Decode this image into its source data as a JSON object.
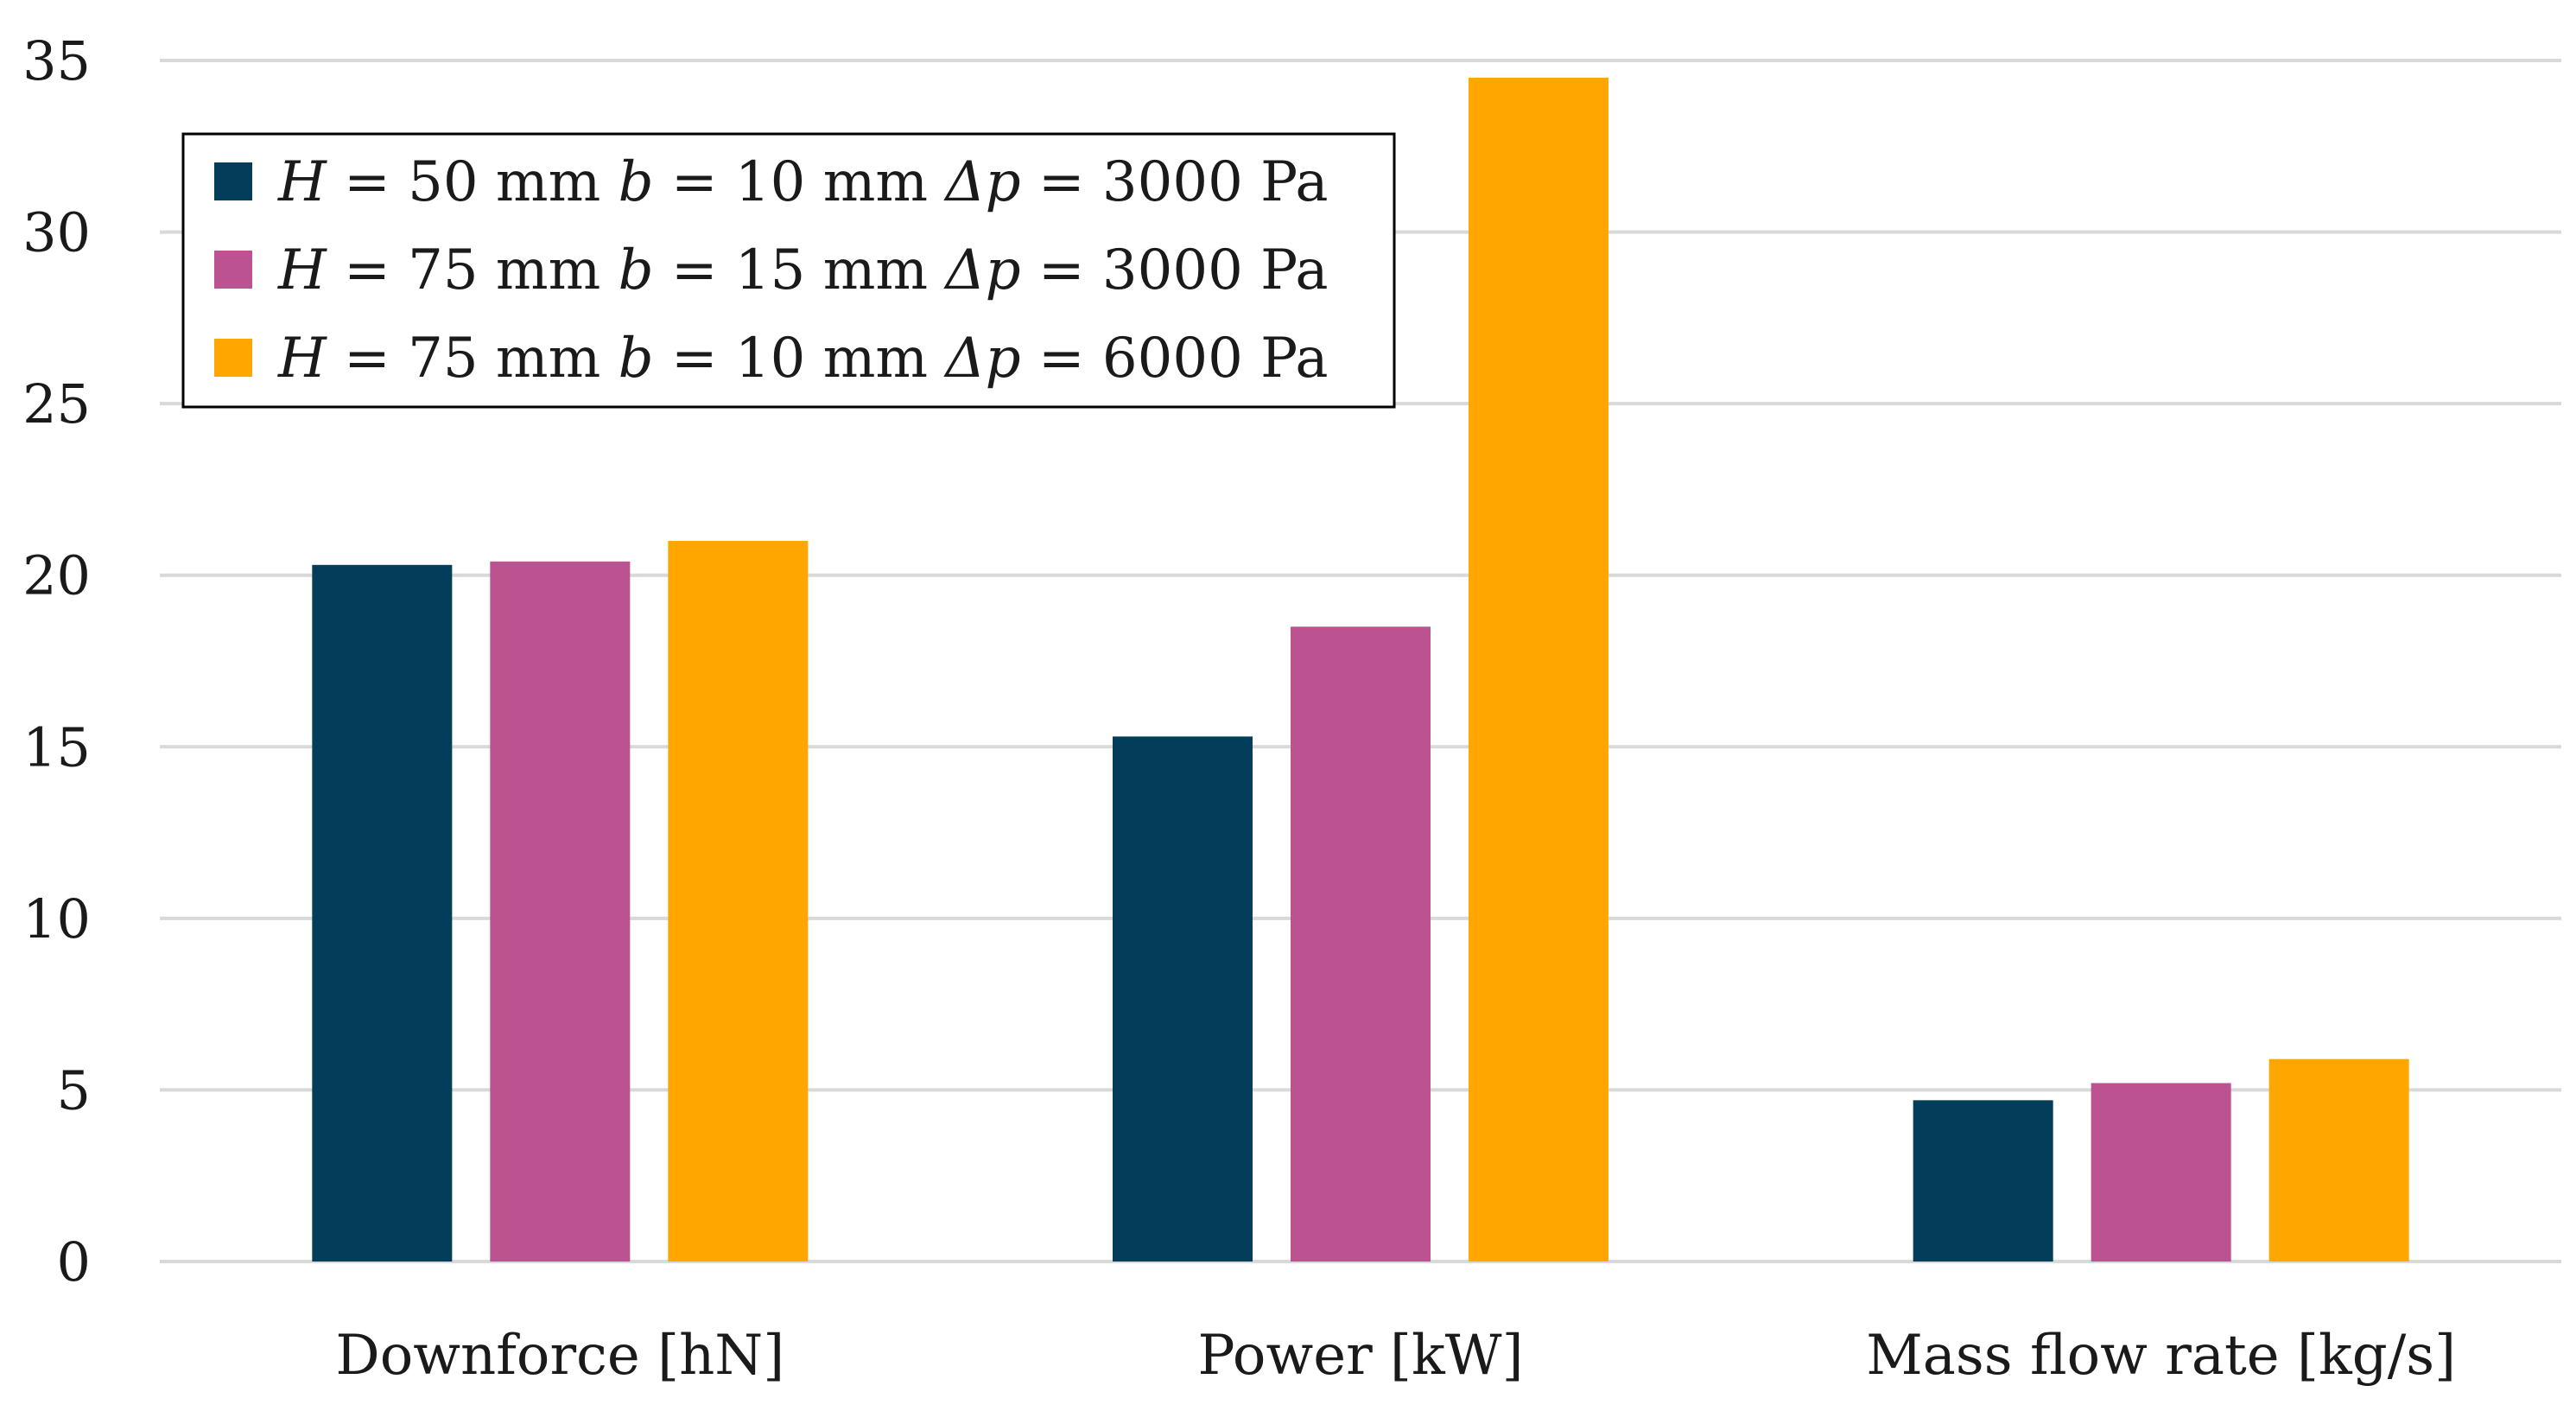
{
  "chart_data": {
    "type": "bar",
    "title": "",
    "xlabel": "",
    "ylabel": "",
    "ylim": [
      0,
      35
    ],
    "yticks": [
      0,
      5,
      10,
      15,
      20,
      25,
      30,
      35
    ],
    "grid": true,
    "legend_position": "top-left",
    "categories": [
      "Downforce [hN]",
      "Power [kW]",
      "Mass flow rate [kg/s]"
    ],
    "series": [
      {
        "name": "H = 50 mm b = 10 mm Δp = 3000 Pa",
        "legend": {
          "H": "H",
          "Hval": " = 50 mm ",
          "b": "b",
          "bval": " = 10 mm ",
          "dp": "Δp",
          "dpval": " = 3000 Pa"
        },
        "color": "#023e5a",
        "values": [
          20.3,
          15.3,
          4.7
        ]
      },
      {
        "name": "H = 75 mm b = 15 mm Δp = 3000 Pa",
        "legend": {
          "H": "H",
          "Hval": " = 75 mm ",
          "b": "b",
          "bval": " = 15 mm ",
          "dp": "Δp",
          "dpval": " = 3000 Pa"
        },
        "color": "#bd5290",
        "values": [
          20.4,
          18.5,
          5.2
        ]
      },
      {
        "name": "H = 75 mm b = 10 mm Δp = 6000 Pa",
        "legend": {
          "H": "H",
          "Hval": " = 75 mm ",
          "b": "b",
          "bval": " = 10 mm ",
          "dp": "Δp",
          "dpval": " = 6000 Pa"
        },
        "color": "#ffa600",
        "values": [
          21.0,
          34.5,
          5.9
        ]
      }
    ]
  }
}
